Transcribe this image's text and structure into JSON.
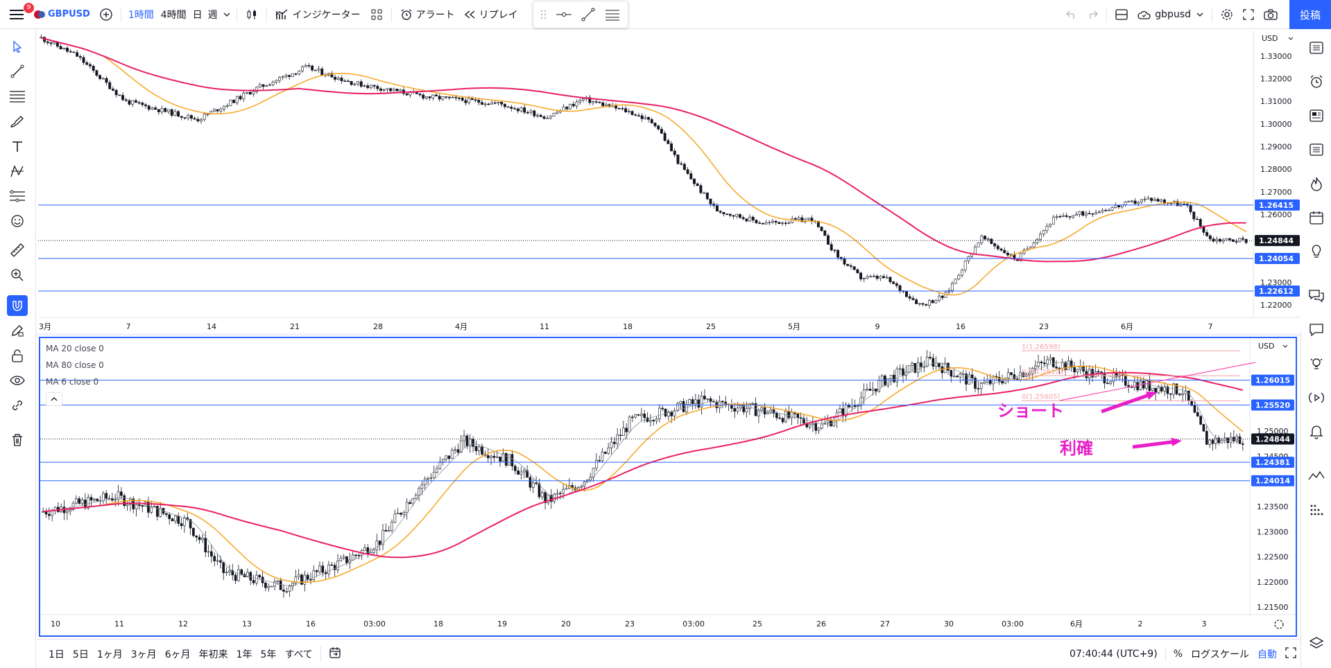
{
  "topbar": {
    "badge": "9",
    "symbol": "GBPUSD",
    "intervals": [
      "1時間",
      "4時間",
      "日",
      "週"
    ],
    "indicators_label": "インジケーター",
    "alert_label": "アラート",
    "replay_label": "リプレイ",
    "layout_name": "gbpusd",
    "post_label": "投稿"
  },
  "top_chart": {
    "currency": "USD",
    "y_labels": [
      "1.33000",
      "1.32000",
      "1.31000",
      "1.30000",
      "1.29000",
      "1.28000",
      "1.27000",
      "1.26000",
      "1.23000",
      "1.22000"
    ],
    "x_labels": [
      "3月",
      "7",
      "14",
      "21",
      "28",
      "4月",
      "11",
      "18",
      "25",
      "5月",
      "9",
      "16",
      "23",
      "6月",
      "7"
    ],
    "h_levels": [
      {
        "label": "1.26415",
        "value": 1.26415
      },
      {
        "label": "1.24054",
        "value": 1.24054
      },
      {
        "label": "1.22612",
        "value": 1.22612
      }
    ],
    "current_price": {
      "label": "1.24844",
      "value": 1.24844
    },
    "ylim": [
      1.2145,
      1.3413
    ]
  },
  "bottom_chart": {
    "currency": "USD",
    "legend": [
      "MA 20 close 0",
      "MA 80 close 0",
      "MA 6 close 0"
    ],
    "y_labels": [
      "1.25000",
      "1.24500",
      "1.23500",
      "1.23000",
      "1.22500",
      "1.22000",
      "1.21500"
    ],
    "x_labels": [
      "10",
      "11",
      "12",
      "13",
      "16",
      "03:00",
      "18",
      "19",
      "20",
      "23",
      "03:00",
      "25",
      "26",
      "27",
      "30",
      "03:00",
      "6月",
      "2",
      "3"
    ],
    "h_levels": [
      {
        "label": "1.26015",
        "value": 1.26015
      },
      {
        "label": "1.25520",
        "value": 1.2552
      },
      {
        "label": "1.24381",
        "value": 1.24381
      },
      {
        "label": "1.24014",
        "value": 1.24014
      }
    ],
    "current_price": {
      "label": "1.24844",
      "value": 1.24844
    },
    "fib_labels": [
      "1(1.26598)",
      "0.5(1.26102)",
      "0(1.25605)"
    ],
    "annotations": {
      "short": "ショート",
      "take_profit": "利確"
    },
    "ylim": [
      1.2135,
      1.2685
    ]
  },
  "bottombar": {
    "ranges": [
      "1日",
      "5日",
      "1ヶ月",
      "3ヶ月",
      "6ヶ月",
      "年初来",
      "1年",
      "5年",
      "すべて"
    ],
    "time": "07:40:44 (UTC+9)",
    "percent": "%",
    "log_scale": "ログスケール",
    "auto": "自動"
  },
  "colors": {
    "accent": "#2962ff",
    "ma_short": "#f7a521",
    "ma_long": "#e91e63",
    "annotation": "#e91ec8",
    "fib": "#f4a3a8"
  }
}
